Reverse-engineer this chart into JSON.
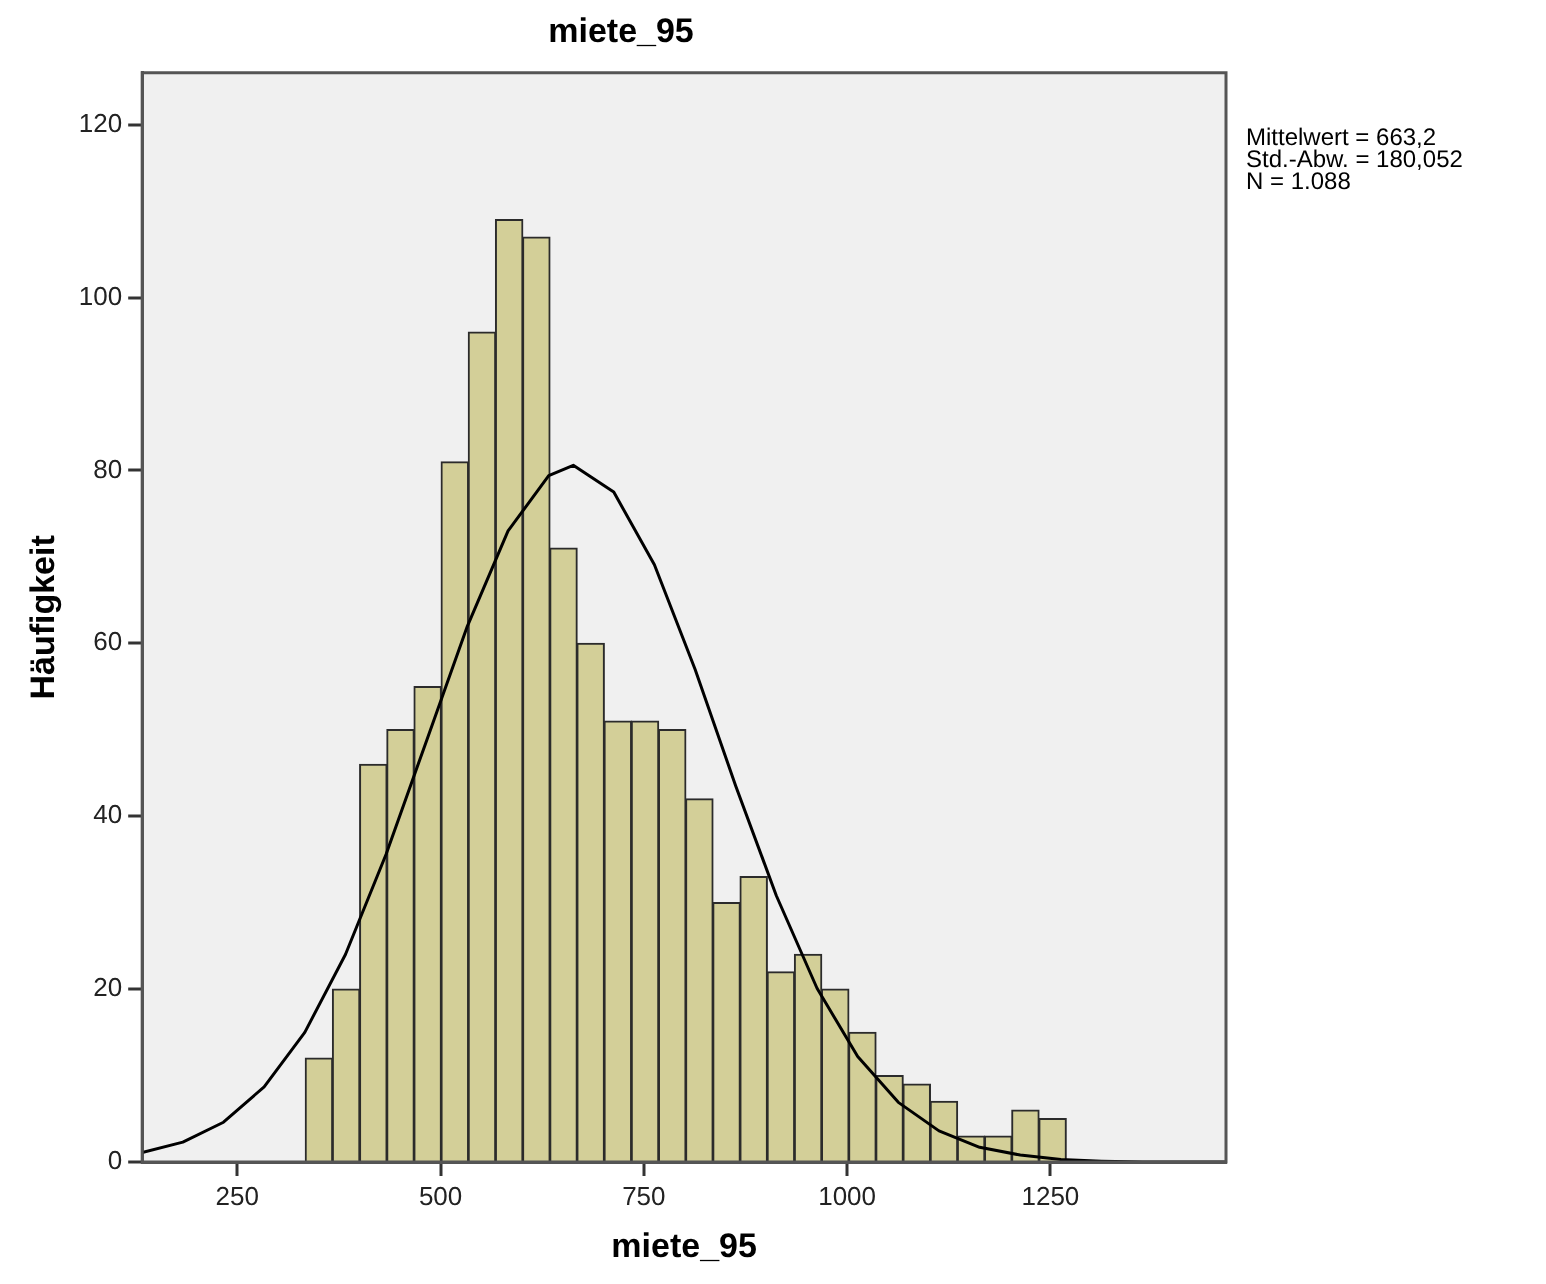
{
  "chart_data": {
    "type": "histogram",
    "title": "miete_95",
    "xlabel": "miete_95",
    "ylabel": "Häufigkeit",
    "annotations": [
      "Mittelwert = 663,2",
      "Std.-Abw. = 180,052",
      "N = 1.088"
    ],
    "bins": [
      333.7,
      367.1,
      400.5,
      434.0,
      467.4,
      500.8,
      534.2,
      567.6,
      601.1,
      634.5,
      667.9,
      701.3,
      734.7,
      768.2,
      801.6,
      835.0,
      868.4,
      901.8,
      935.3,
      968.7,
      1002.1,
      1035.5,
      1068.9,
      1102.4,
      1135.8,
      1169.2,
      1202.6,
      1236.0,
      1269.5
    ],
    "values": [
      12,
      20,
      46,
      50,
      55,
      81,
      96,
      109,
      107,
      71,
      60,
      51,
      51,
      50,
      42,
      30,
      33,
      22,
      24,
      20,
      15,
      10,
      9,
      7,
      3,
      3,
      6,
      5
    ],
    "color": "#d3cf98",
    "series": [
      {
        "type": "line",
        "color": "#000000",
        "x": [
          133,
          183,
          233,
          283,
          333,
          383,
          433,
          483,
          533,
          583,
          633,
          663.2,
          713,
          763,
          813,
          863,
          913,
          963,
          1013,
          1063,
          1113,
          1163,
          1213,
          1263,
          1313,
          1363,
          1413,
          1466
        ],
        "values": [
          1.1,
          2.3,
          4.6,
          8.7,
          15.0,
          24.0,
          35.6,
          48.8,
          62.0,
          73.0,
          79.4,
          80.6,
          77.5,
          69.1,
          57.0,
          43.5,
          30.8,
          20.1,
          12.2,
          6.9,
          3.6,
          1.7,
          0.8,
          0.3,
          0.1,
          0.0,
          0.0,
          0.0
        ]
      }
    ],
    "xlim": [
      133,
      1466
    ],
    "xticks": [
      250,
      500,
      750,
      1000,
      1250
    ],
    "ylim": [
      0,
      126
    ],
    "yticks": [
      0,
      20,
      40,
      60,
      80,
      100,
      120
    ]
  }
}
